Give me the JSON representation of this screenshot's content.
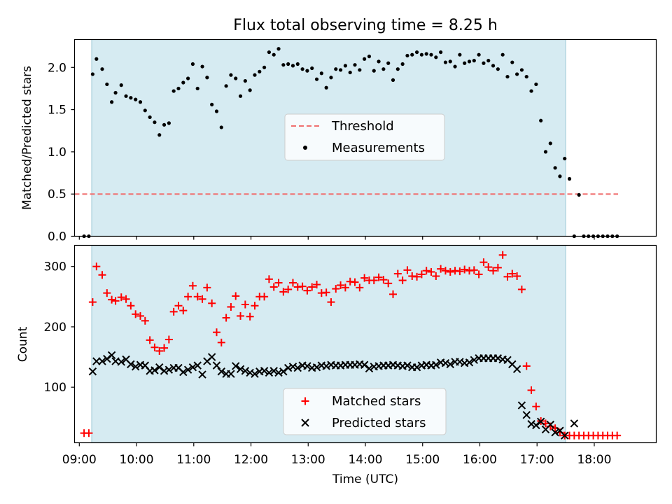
{
  "chart_data": [
    {
      "type": "scatter",
      "title": "Flux total observing time = 8.25 h",
      "xlabel": "",
      "ylabel": "Matched/Predicted stars",
      "xlim": [
        "08:55",
        "19:05"
      ],
      "ylim": [
        0,
        2.33
      ],
      "yticks": [
        "0.0",
        "0.5",
        "1.0",
        "1.5",
        "2.0"
      ],
      "observing_window": [
        "09:13",
        "17:30"
      ],
      "legend": {
        "position": "center",
        "entries": [
          "Threshold",
          "Measurements"
        ]
      },
      "threshold": {
        "name": "Threshold",
        "value": 0.5,
        "x": [
          "08:55",
          "18:25"
        ],
        "color": "#f07070"
      },
      "series": [
        {
          "name": "Measurements",
          "color": "#000000",
          "x": [
            "09:05",
            "09:10",
            "09:14",
            "09:18",
            "09:24",
            "09:29",
            "09:34",
            "09:38",
            "09:44",
            "09:49",
            "09:54",
            "09:59",
            "10:04",
            "10:09",
            "10:14",
            "10:19",
            "10:24",
            "10:29",
            "10:34",
            "10:39",
            "10:44",
            "10:49",
            "10:54",
            "10:59",
            "11:04",
            "11:09",
            "11:14",
            "11:19",
            "11:24",
            "11:29",
            "11:34",
            "11:39",
            "11:44",
            "11:49",
            "11:54",
            "11:59",
            "12:04",
            "12:09",
            "12:14",
            "12:19",
            "12:24",
            "12:29",
            "12:34",
            "12:39",
            "12:44",
            "12:49",
            "12:54",
            "12:59",
            "13:04",
            "13:09",
            "13:14",
            "13:19",
            "13:24",
            "13:29",
            "13:34",
            "13:39",
            "13:44",
            "13:49",
            "13:54",
            "13:59",
            "14:04",
            "14:09",
            "14:14",
            "14:19",
            "14:24",
            "14:29",
            "14:34",
            "14:39",
            "14:44",
            "14:49",
            "14:54",
            "14:59",
            "15:04",
            "15:09",
            "15:14",
            "15:19",
            "15:24",
            "15:29",
            "15:34",
            "15:39",
            "15:44",
            "15:49",
            "15:54",
            "15:59",
            "16:04",
            "16:09",
            "16:14",
            "16:19",
            "16:24",
            "16:29",
            "16:34",
            "16:39",
            "16:44",
            "16:49",
            "16:54",
            "16:59",
            "17:04",
            "17:09",
            "17:14",
            "17:19",
            "17:24",
            "17:29",
            "17:34",
            "17:39",
            "17:44",
            "17:49",
            "17:54",
            "17:59",
            "18:04",
            "18:09",
            "18:14",
            "18:19",
            "18:24"
          ],
          "y": [
            0.0,
            0.0,
            1.92,
            2.1,
            1.98,
            1.8,
            1.59,
            1.7,
            1.79,
            1.66,
            1.64,
            1.62,
            1.59,
            1.49,
            1.41,
            1.35,
            1.2,
            1.32,
            1.34,
            1.72,
            1.75,
            1.82,
            1.87,
            2.04,
            1.75,
            2.01,
            1.88,
            1.56,
            1.48,
            1.29,
            1.78,
            1.91,
            1.87,
            1.66,
            1.84,
            1.73,
            1.91,
            1.95,
            2.0,
            2.18,
            2.15,
            2.22,
            2.03,
            2.04,
            2.02,
            2.04,
            1.98,
            1.96,
            1.99,
            1.86,
            1.93,
            1.76,
            1.88,
            1.98,
            1.97,
            2.02,
            1.94,
            2.03,
            1.97,
            2.1,
            2.13,
            1.96,
            2.07,
            1.98,
            2.05,
            1.85,
            1.98,
            2.04,
            2.14,
            2.15,
            2.18,
            2.15,
            2.16,
            2.15,
            2.12,
            2.18,
            2.06,
            2.07,
            2.01,
            2.15,
            2.05,
            2.07,
            2.08,
            2.15,
            2.05,
            2.08,
            2.02,
            1.98,
            2.15,
            1.89,
            2.06,
            1.92,
            1.97,
            1.89,
            1.72,
            1.8,
            1.37,
            1.0,
            1.1,
            0.81,
            0.71,
            0.92,
            0.68,
            0.0,
            0.49,
            0.0,
            0.0,
            0.0,
            0.0,
            0.0,
            0.0,
            0.0,
            0.0
          ]
        }
      ]
    },
    {
      "type": "scatter",
      "title": "",
      "xlabel": "Time (UTC)",
      "ylabel": "Count",
      "xlim": [
        "08:55",
        "19:05"
      ],
      "ylim": [
        8,
        335
      ],
      "yticks": [
        "100",
        "200",
        "300"
      ],
      "xticks": [
        "09:00",
        "10:00",
        "11:00",
        "12:00",
        "13:00",
        "14:00",
        "15:00",
        "16:00",
        "17:00",
        "18:00"
      ],
      "observing_window": [
        "09:13",
        "17:30"
      ],
      "legend": {
        "position": "lower center",
        "entries": [
          "Matched stars",
          "Predicted stars"
        ]
      },
      "series": [
        {
          "name": "Matched stars",
          "marker": "+",
          "color": "#ff0000",
          "x": [
            "09:05",
            "09:10",
            "09:14",
            "09:18",
            "09:24",
            "09:29",
            "09:34",
            "09:38",
            "09:44",
            "09:49",
            "09:54",
            "09:59",
            "10:04",
            "10:09",
            "10:14",
            "10:19",
            "10:24",
            "10:29",
            "10:34",
            "10:39",
            "10:44",
            "10:49",
            "10:54",
            "10:59",
            "11:04",
            "11:09",
            "11:14",
            "11:19",
            "11:24",
            "11:29",
            "11:34",
            "11:39",
            "11:44",
            "11:49",
            "11:54",
            "11:59",
            "12:04",
            "12:09",
            "12:14",
            "12:19",
            "12:24",
            "12:29",
            "12:34",
            "12:39",
            "12:44",
            "12:49",
            "12:54",
            "12:59",
            "13:04",
            "13:09",
            "13:14",
            "13:19",
            "13:24",
            "13:29",
            "13:34",
            "13:39",
            "13:44",
            "13:49",
            "13:54",
            "13:59",
            "14:04",
            "14:09",
            "14:14",
            "14:19",
            "14:24",
            "14:29",
            "14:34",
            "14:39",
            "14:44",
            "14:49",
            "14:54",
            "14:59",
            "15:04",
            "15:09",
            "15:14",
            "15:19",
            "15:24",
            "15:29",
            "15:34",
            "15:39",
            "15:44",
            "15:49",
            "15:54",
            "15:59",
            "16:04",
            "16:09",
            "16:14",
            "16:19",
            "16:24",
            "16:29",
            "16:34",
            "16:39",
            "16:44",
            "16:49",
            "16:54",
            "16:59",
            "17:04",
            "17:09",
            "17:14",
            "17:19",
            "17:24",
            "17:29",
            "17:34",
            "17:39",
            "17:44",
            "17:49",
            "17:54",
            "17:59",
            "18:04",
            "18:09",
            "18:14",
            "18:19",
            "18:24"
          ],
          "y": [
            24,
            24,
            241,
            300,
            286,
            256,
            245,
            243,
            249,
            246,
            235,
            221,
            218,
            210,
            178,
            166,
            160,
            165,
            179,
            225,
            235,
            227,
            250,
            268,
            250,
            246,
            265,
            239,
            191,
            174,
            215,
            233,
            251,
            218,
            237,
            217,
            235,
            250,
            250,
            279,
            266,
            273,
            258,
            262,
            273,
            266,
            267,
            260,
            266,
            270,
            256,
            257,
            241,
            263,
            269,
            265,
            275,
            274,
            265,
            281,
            277,
            277,
            282,
            278,
            272,
            254,
            288,
            277,
            294,
            284,
            283,
            287,
            293,
            291,
            284,
            296,
            293,
            291,
            293,
            292,
            295,
            293,
            294,
            287,
            307,
            299,
            293,
            298,
            319,
            283,
            288,
            284,
            262,
            135,
            95,
            68,
            44,
            40,
            35,
            32,
            25,
            20,
            20,
            20,
            20,
            20,
            20,
            20,
            20,
            20,
            20,
            20,
            20
          ]
        },
        {
          "name": "Predicted stars",
          "marker": "x",
          "color": "#000000",
          "x": [
            "09:14",
            "09:18",
            "09:24",
            "09:29",
            "09:34",
            "09:38",
            "09:44",
            "09:49",
            "09:54",
            "09:59",
            "10:04",
            "10:09",
            "10:14",
            "10:19",
            "10:24",
            "10:29",
            "10:34",
            "10:39",
            "10:44",
            "10:49",
            "10:54",
            "10:59",
            "11:04",
            "11:09",
            "11:14",
            "11:19",
            "11:24",
            "11:29",
            "11:34",
            "11:39",
            "11:44",
            "11:49",
            "11:54",
            "11:59",
            "12:04",
            "12:09",
            "12:14",
            "12:19",
            "12:24",
            "12:29",
            "12:34",
            "12:39",
            "12:44",
            "12:49",
            "12:54",
            "12:59",
            "13:04",
            "13:09",
            "13:14",
            "13:19",
            "13:24",
            "13:29",
            "13:34",
            "13:39",
            "13:44",
            "13:49",
            "13:54",
            "13:59",
            "14:04",
            "14:09",
            "14:14",
            "14:19",
            "14:24",
            "14:29",
            "14:34",
            "14:39",
            "14:44",
            "14:49",
            "14:54",
            "14:59",
            "15:04",
            "15:09",
            "15:14",
            "15:19",
            "15:24",
            "15:29",
            "15:34",
            "15:39",
            "15:44",
            "15:49",
            "15:54",
            "15:59",
            "16:04",
            "16:09",
            "16:14",
            "16:19",
            "16:24",
            "16:29",
            "16:34",
            "16:39",
            "16:44",
            "16:49",
            "16:54",
            "16:59",
            "17:04",
            "17:09",
            "17:14",
            "17:19",
            "17:24",
            "17:29",
            "17:39"
          ],
          "y": [
            126,
            143,
            143,
            147,
            153,
            143,
            142,
            146,
            138,
            134,
            137,
            136,
            127,
            128,
            133,
            127,
            129,
            132,
            132,
            125,
            129,
            133,
            136,
            121,
            143,
            150,
            136,
            126,
            122,
            122,
            135,
            130,
            127,
            124,
            122,
            126,
            127,
            124,
            127,
            124,
            126,
            132,
            134,
            132,
            136,
            135,
            132,
            133,
            136,
            135,
            137,
            136,
            136,
            137,
            137,
            137,
            138,
            137,
            131,
            134,
            135,
            136,
            136,
            137,
            136,
            135,
            136,
            133,
            133,
            136,
            137,
            136,
            137,
            141,
            140,
            138,
            142,
            142,
            140,
            141,
            145,
            148,
            148,
            148,
            148,
            148,
            146,
            145,
            138,
            130,
            70,
            54,
            39,
            37,
            43,
            30,
            38,
            25,
            28,
            20,
            40
          ]
        }
      ]
    }
  ]
}
